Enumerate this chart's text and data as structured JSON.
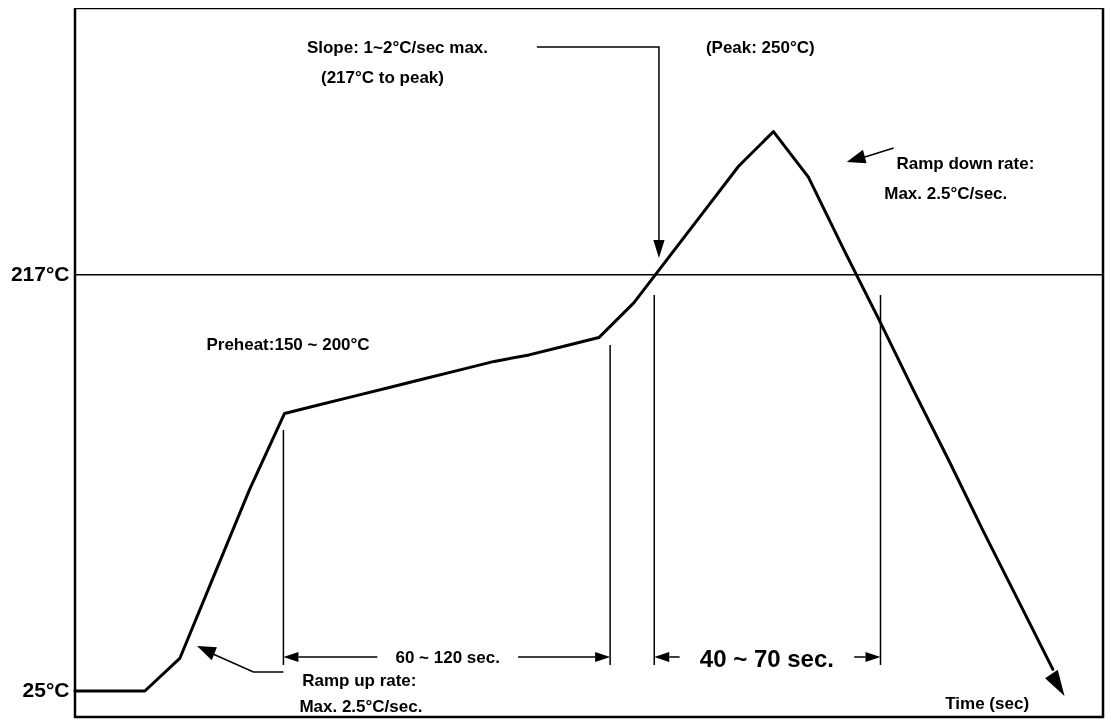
{
  "chart_data": {
    "type": "line",
    "categories": [
      null,
      null,
      null,
      null,
      null,
      null,
      null,
      null,
      null,
      null,
      null,
      null,
      null,
      null,
      null,
      null,
      null,
      null,
      null,
      null,
      null,
      null,
      null,
      null,
      null,
      null,
      null,
      null,
      null
    ],
    "series": [
      {
        "color": "#000000",
        "values": [
          25,
          25,
          25,
          40,
          79,
          118,
          153,
          157,
          161,
          165,
          169,
          173,
          177,
          180,
          184,
          188,
          204,
          225,
          246,
          267,
          283,
          262,
          229,
          197,
          164,
          132,
          99,
          67,
          35
        ]
      }
    ],
    "ylim": [
      13,
      340
    ],
    "yticks": [
      {
        "value": 25,
        "label": "25°C"
      },
      {
        "value": 217,
        "label": "217°C"
      }
    ],
    "tick_labels": "y",
    "grid": false,
    "ref_lines": [
      {
        "axis": "y",
        "value": 217
      }
    ],
    "xlabel": "Time (sec)",
    "annotations": [
      "Slope: 1~2°C/sec max.",
      "(217°C to peak)",
      "(Peak: 250°C)",
      "Ramp down rate:",
      "Max. 2.5°C/sec.",
      "Preheat:150 ~ 200°C",
      "60 ~ 120 sec.",
      "40 ~ 70 sec.",
      "Ramp up rate:",
      "Max. 2.5°C/sec."
    ]
  }
}
